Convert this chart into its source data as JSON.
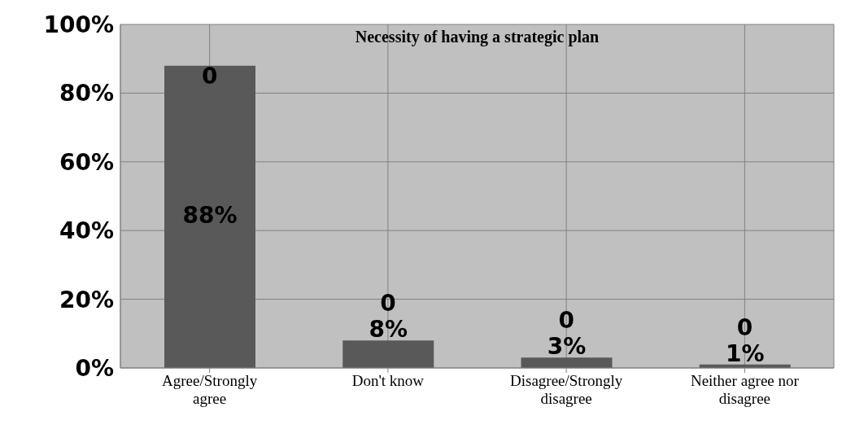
{
  "chart_data": {
    "type": "bar",
    "title": "Necessity of having a strategic plan",
    "categories": [
      "Agree/Strongly agree",
      "Don't know",
      "Disagree/Strongly disagree",
      "Neither agree nor disagree"
    ],
    "values": [
      88,
      8,
      3,
      1
    ],
    "color": "#595959",
    "value_labels": [
      "88%",
      "8%",
      "3%",
      "1%"
    ],
    "annotations": [
      {
        "text": "0",
        "x": "Agree/Strongly agree",
        "y": 88
      },
      {
        "text": "0",
        "x": "Don't know",
        "y": 8
      },
      {
        "text": "0",
        "x": "Disagree/Strongly disagree",
        "y": 3
      },
      {
        "text": "0",
        "x": "Neither agree nor disagree",
        "y": 1
      }
    ],
    "ylim": [
      0,
      100
    ],
    "yticks": [
      {
        "value": 0,
        "label": "0%"
      },
      {
        "value": 20,
        "label": "20%"
      },
      {
        "value": 40,
        "label": "40%"
      },
      {
        "value": 60,
        "label": "60%"
      },
      {
        "value": 80,
        "label": "80%"
      },
      {
        "value": 100,
        "label": "100%"
      }
    ],
    "grid": true,
    "legend": false
  }
}
